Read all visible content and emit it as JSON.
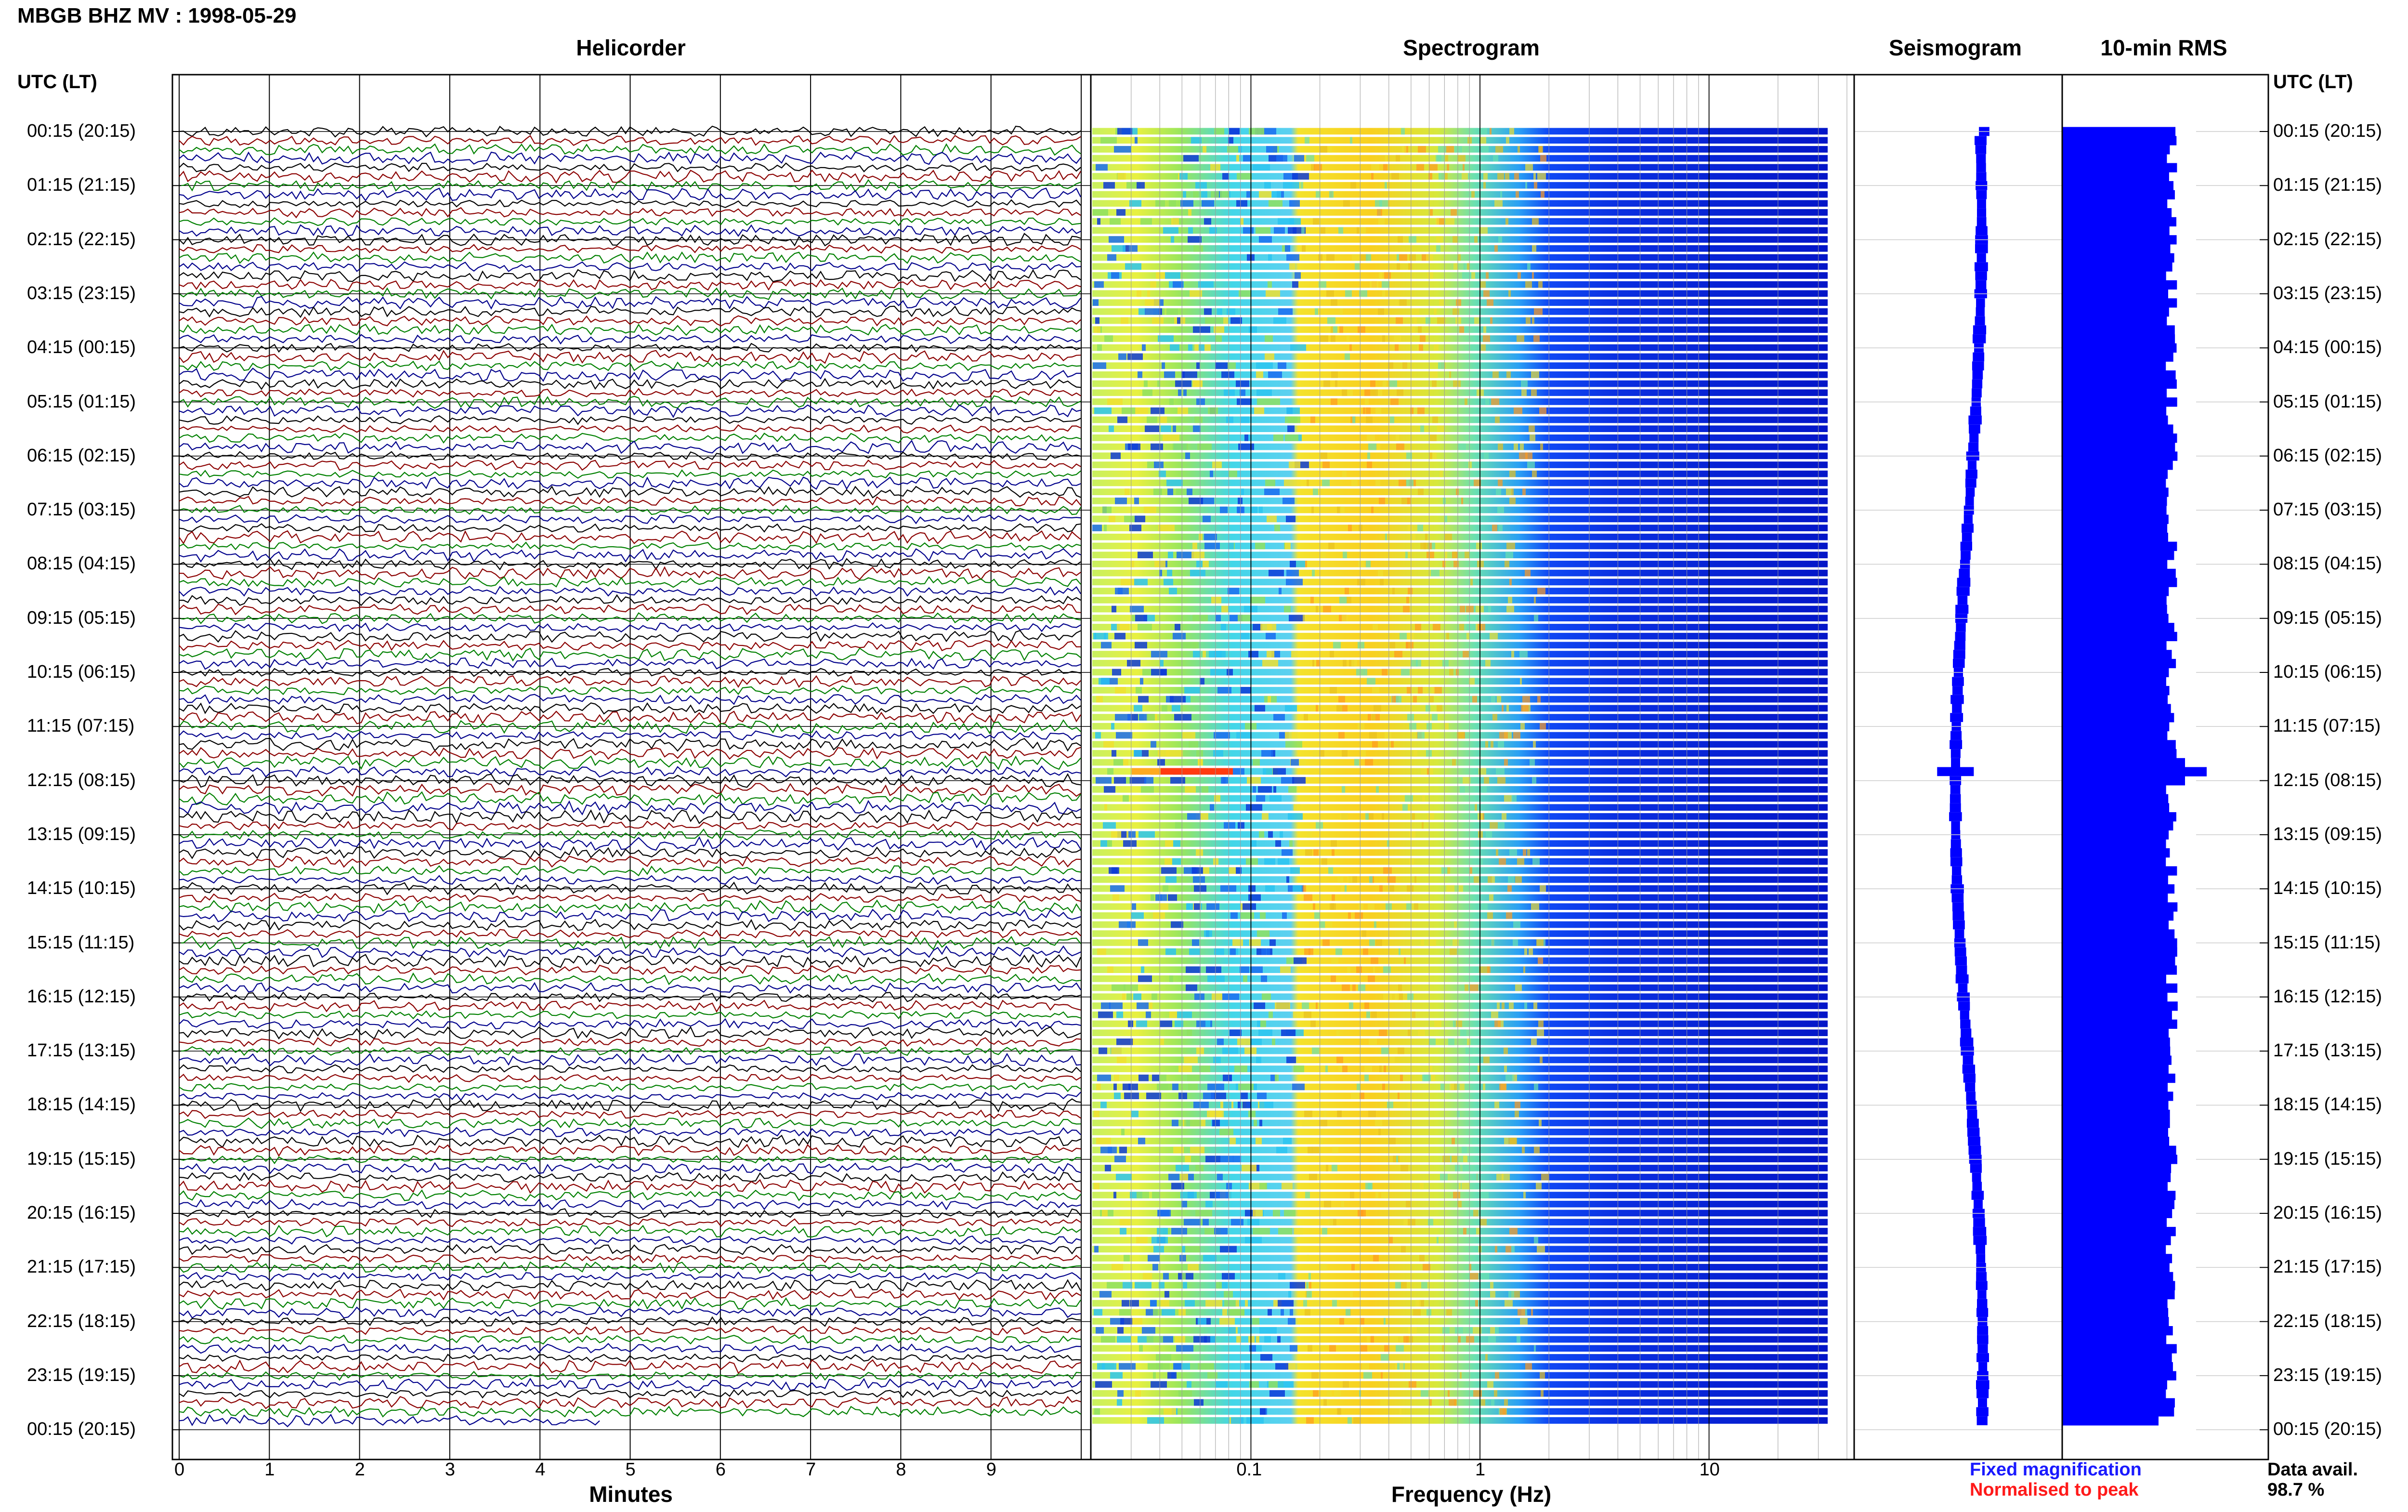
{
  "station_title": "MBGB BHZ MV : 1998-05-29",
  "panels": {
    "helicorder": "Helicorder",
    "spectrogram": "Spectrogram",
    "seismogram": "Seismogram",
    "rms": "10-min RMS"
  },
  "time_axis_title": "UTC (LT)",
  "time_labels": [
    "00:15 (20:15)",
    "01:15 (21:15)",
    "02:15 (22:15)",
    "03:15 (23:15)",
    "04:15 (00:15)",
    "05:15 (01:15)",
    "06:15 (02:15)",
    "07:15 (03:15)",
    "08:15 (04:15)",
    "09:15 (05:15)",
    "10:15 (06:15)",
    "11:15 (07:15)",
    "12:15 (08:15)",
    "13:15 (09:15)",
    "14:15 (10:15)",
    "15:15 (11:15)",
    "16:15 (12:15)",
    "17:15 (13:15)",
    "18:15 (14:15)",
    "19:15 (15:15)",
    "20:15 (16:15)",
    "21:15 (17:15)",
    "22:15 (18:15)",
    "23:15 (19:15)",
    "00:15 (20:15)"
  ],
  "helicorder_xaxis": {
    "title": "Minutes",
    "ticks": [
      "0",
      "1",
      "2",
      "3",
      "4",
      "5",
      "6",
      "7",
      "8",
      "9"
    ]
  },
  "spectrogram_xaxis": {
    "title": "Frequency (Hz)",
    "ticks": [
      "0.1",
      "1",
      "10"
    ],
    "scale": "log"
  },
  "legend": {
    "fixed": "Fixed magnification",
    "normalised": "Normalised to peak",
    "fixed_color": "#1a1aff",
    "normalised_color": "#ff1a1a"
  },
  "data_availability": {
    "label": "Data avail.",
    "value": "98.7 %"
  },
  "colors": {
    "trace_colors": [
      "#000000",
      "#8b0000",
      "#008000",
      "#00008b"
    ],
    "seismogram": "#0000ff",
    "rms": "#0000ff"
  },
  "chart_data": [
    {
      "type": "line",
      "title": "Helicorder",
      "xlabel": "Minutes",
      "xlim": [
        0,
        10
      ],
      "rows": 144,
      "minutes_per_row": 10,
      "row_start_utc": "00:15",
      "series_colors": [
        "black",
        "dark red",
        "green",
        "dark blue"
      ],
      "grid": true
    },
    {
      "type": "heatmap",
      "title": "Spectrogram",
      "xlabel": "Frequency (Hz)",
      "xlim": [
        0.02,
        40
      ],
      "xscale": "log",
      "colormap": "jet",
      "energy_band_hz": [
        0.2,
        2
      ],
      "notable_event_utc": "12:05"
    },
    {
      "type": "line",
      "title": "Seismogram",
      "style": "long-period trace, fixed magnification",
      "event_utc": "12:05"
    },
    {
      "type": "bar",
      "title": "10-min RMS",
      "bins": 144,
      "bin_minutes": 10,
      "max_bin_utc": "12:05",
      "color": "blue"
    }
  ]
}
